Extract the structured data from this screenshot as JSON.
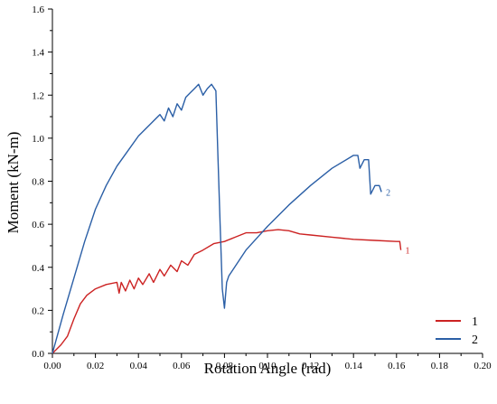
{
  "chart_data": {
    "type": "line",
    "title": "",
    "xlabel": "Rotation Angle (rad)",
    "ylabel": "Moment (kN-m)",
    "xlim": [
      0,
      0.2
    ],
    "ylim": [
      0,
      1.6
    ],
    "x_ticks": [
      "0.00",
      "0.02",
      "0.04",
      "0.06",
      "0.08",
      "0.10",
      "0.12",
      "0.14",
      "0.16",
      "0.18",
      "0.20"
    ],
    "y_ticks": [
      "0.0",
      "0.2",
      "0.4",
      "0.6",
      "0.8",
      "1.0",
      "1.2",
      "1.4",
      "1.6"
    ],
    "grid": false,
    "legend_position": "bottom-right",
    "series": [
      {
        "name": "1",
        "end_label": "1",
        "color": "#cc2222",
        "points": [
          [
            0.0,
            0.0
          ],
          [
            0.004,
            0.04
          ],
          [
            0.007,
            0.08
          ],
          [
            0.01,
            0.16
          ],
          [
            0.013,
            0.23
          ],
          [
            0.016,
            0.27
          ],
          [
            0.02,
            0.3
          ],
          [
            0.025,
            0.32
          ],
          [
            0.03,
            0.33
          ],
          [
            0.031,
            0.28
          ],
          [
            0.032,
            0.33
          ],
          [
            0.034,
            0.29
          ],
          [
            0.036,
            0.34
          ],
          [
            0.038,
            0.3
          ],
          [
            0.04,
            0.35
          ],
          [
            0.042,
            0.32
          ],
          [
            0.045,
            0.37
          ],
          [
            0.047,
            0.33
          ],
          [
            0.05,
            0.39
          ],
          [
            0.052,
            0.36
          ],
          [
            0.055,
            0.41
          ],
          [
            0.058,
            0.38
          ],
          [
            0.06,
            0.43
          ],
          [
            0.063,
            0.41
          ],
          [
            0.066,
            0.46
          ],
          [
            0.07,
            0.48
          ],
          [
            0.075,
            0.51
          ],
          [
            0.08,
            0.52
          ],
          [
            0.085,
            0.54
          ],
          [
            0.09,
            0.56
          ],
          [
            0.095,
            0.56
          ],
          [
            0.1,
            0.57
          ],
          [
            0.105,
            0.575
          ],
          [
            0.11,
            0.57
          ],
          [
            0.115,
            0.555
          ],
          [
            0.12,
            0.55
          ],
          [
            0.13,
            0.54
          ],
          [
            0.14,
            0.53
          ],
          [
            0.15,
            0.525
          ],
          [
            0.16,
            0.52
          ],
          [
            0.1615,
            0.52
          ],
          [
            0.162,
            0.48
          ]
        ]
      },
      {
        "name": "2",
        "end_label": "2",
        "color": "#2b5fa6",
        "points": [
          [
            0.0,
            0.0
          ],
          [
            0.005,
            0.18
          ],
          [
            0.01,
            0.35
          ],
          [
            0.015,
            0.52
          ],
          [
            0.02,
            0.67
          ],
          [
            0.025,
            0.78
          ],
          [
            0.03,
            0.87
          ],
          [
            0.035,
            0.94
          ],
          [
            0.04,
            1.01
          ],
          [
            0.045,
            1.06
          ],
          [
            0.05,
            1.11
          ],
          [
            0.052,
            1.08
          ],
          [
            0.054,
            1.14
          ],
          [
            0.056,
            1.1
          ],
          [
            0.058,
            1.16
          ],
          [
            0.06,
            1.13
          ],
          [
            0.062,
            1.19
          ],
          [
            0.064,
            1.21
          ],
          [
            0.066,
            1.23
          ],
          [
            0.068,
            1.25
          ],
          [
            0.07,
            1.2
          ],
          [
            0.072,
            1.23
          ],
          [
            0.074,
            1.25
          ],
          [
            0.076,
            1.22
          ],
          [
            0.077,
            0.9
          ],
          [
            0.078,
            0.6
          ],
          [
            0.079,
            0.3
          ],
          [
            0.08,
            0.21
          ],
          [
            0.081,
            0.33
          ],
          [
            0.082,
            0.36
          ],
          [
            0.09,
            0.48
          ],
          [
            0.1,
            0.59
          ],
          [
            0.11,
            0.69
          ],
          [
            0.12,
            0.78
          ],
          [
            0.13,
            0.86
          ],
          [
            0.14,
            0.92
          ],
          [
            0.142,
            0.92
          ],
          [
            0.143,
            0.86
          ],
          [
            0.145,
            0.9
          ],
          [
            0.147,
            0.9
          ],
          [
            0.148,
            0.74
          ],
          [
            0.15,
            0.78
          ],
          [
            0.152,
            0.78
          ],
          [
            0.153,
            0.75
          ]
        ]
      }
    ]
  }
}
